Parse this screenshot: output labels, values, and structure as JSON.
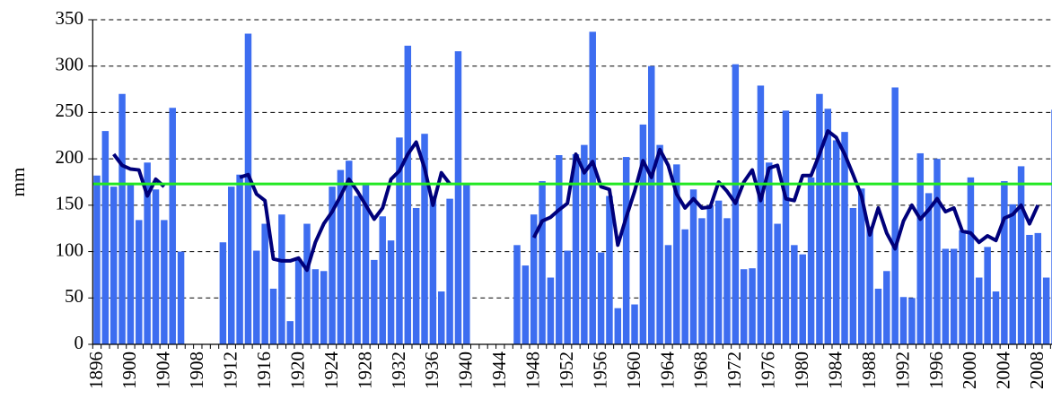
{
  "chart_data": {
    "type": "bar",
    "y_label": "mm",
    "categories": [
      "1896",
      null,
      null,
      null,
      "1900",
      null,
      null,
      null,
      "1904",
      null,
      null,
      null,
      "1908",
      null,
      null,
      null,
      "1912",
      null,
      null,
      null,
      "1916",
      null,
      null,
      null,
      "1920",
      null,
      null,
      null,
      "1924",
      null,
      null,
      null,
      "1928",
      null,
      null,
      null,
      "1932",
      null,
      null,
      null,
      "1936",
      null,
      null,
      null,
      "1940",
      null,
      null,
      null,
      "1944",
      null,
      null,
      null,
      "1948",
      null,
      null,
      null,
      "1952",
      null,
      null,
      null,
      "1956",
      null,
      null,
      null,
      "1960",
      null,
      null,
      null,
      "1964",
      null,
      null,
      null,
      "1968",
      null,
      null,
      null,
      "1972",
      null,
      null,
      null,
      "1976",
      null,
      null,
      null,
      "1980",
      null,
      null,
      null,
      "1984",
      null,
      null,
      null,
      "1988",
      null,
      null,
      null,
      "1992",
      null,
      null,
      null,
      "1996",
      null,
      null,
      null,
      "2000",
      null,
      null,
      null,
      "2004",
      null,
      null,
      null,
      "2008",
      null,
      null
    ],
    "series": [
      {
        "type": "bar",
        "color": "#3d6df0",
        "values": [
          182,
          230,
          170,
          270,
          172,
          134,
          196,
          167,
          134,
          255,
          100,
          null,
          null,
          null,
          null,
          110,
          170,
          183,
          335,
          101,
          130,
          60,
          140,
          25,
          92,
          130,
          81,
          79,
          170,
          188,
          198,
          160,
          173,
          91,
          138,
          112,
          223,
          322,
          147,
          227,
          160,
          57,
          157,
          316,
          172,
          null,
          null,
          null,
          null,
          null,
          107,
          85,
          140,
          176,
          72,
          204,
          101,
          205,
          215,
          337,
          99,
          160,
          39,
          202,
          43,
          237,
          300,
          215,
          107,
          194,
          124,
          167,
          136,
          150,
          155,
          136,
          302,
          81,
          82,
          279,
          196,
          130,
          252,
          107,
          97,
          180,
          270,
          254,
          220,
          229,
          147,
          168,
          127,
          60,
          79,
          277,
          51,
          50,
          206,
          163,
          200,
          103,
          103,
          123,
          180,
          72,
          105,
          57,
          176,
          151,
          192,
          118,
          120,
          72,
          253
        ]
      },
      {
        "type": "line",
        "color": "#00007a",
        "values": [
          null,
          null,
          205,
          193,
          189,
          188,
          160,
          178,
          170,
          null,
          null,
          null,
          null,
          null,
          null,
          null,
          null,
          180,
          183,
          162,
          155,
          92,
          90,
          90,
          93,
          80,
          110,
          130,
          143,
          160,
          178,
          165,
          150,
          135,
          147,
          178,
          187,
          205,
          218,
          190,
          150,
          185,
          173,
          null,
          null,
          null,
          null,
          null,
          null,
          null,
          null,
          null,
          115,
          133,
          137,
          145,
          152,
          205,
          185,
          197,
          170,
          167,
          107,
          137,
          165,
          198,
          180,
          210,
          193,
          162,
          147,
          157,
          147,
          148,
          175,
          165,
          152,
          175,
          188,
          155,
          190,
          193,
          157,
          155,
          182,
          182,
          205,
          230,
          223,
          205,
          183,
          160,
          118,
          147,
          120,
          103,
          133,
          150,
          135,
          145,
          157,
          143,
          147,
          122,
          120,
          110,
          117,
          112,
          136,
          140,
          150,
          130,
          150,
          null,
          null
        ]
      }
    ],
    "reference_line": {
      "value": 173,
      "color": "#22e822"
    },
    "ylim": [
      0,
      350
    ],
    "yticks": [
      0,
      50,
      100,
      150,
      200,
      250,
      300,
      350
    ],
    "grid": true
  }
}
